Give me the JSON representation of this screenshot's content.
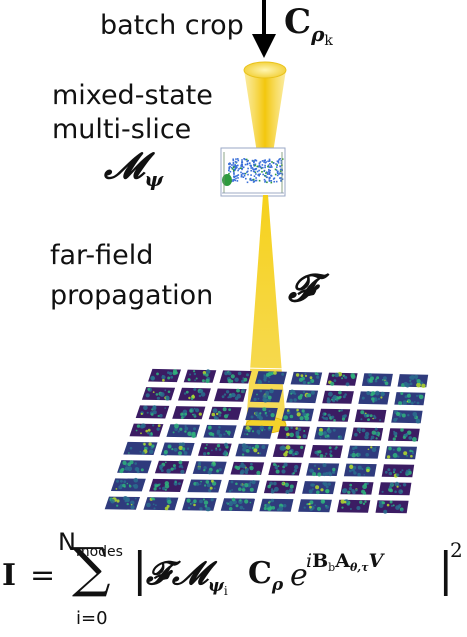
{
  "labels": {
    "batch_crop": "batch crop",
    "crop_symbol_main": "C",
    "crop_symbol_sub": "ρ",
    "crop_symbol_subsub": "k",
    "mixed_state_line1": "mixed-state",
    "mixed_state_line2": "multi-slice",
    "mixed_state_symbol": "𝓜",
    "mixed_state_symbol_sub": "ψ",
    "far_field_line1": "far-field",
    "far_field_line2": "propagation",
    "propagation_symbol": "𝓕"
  },
  "formula": {
    "lhs": "I",
    "equals": "=",
    "sum_symbol": "∑",
    "upper_limit": "N",
    "upper_limit_sub": "modes",
    "lower_limit": "i=0",
    "bar": "|",
    "F": "𝓕",
    "M": "𝓜",
    "M_sub": "ψ",
    "M_subsub": "i",
    "C": "C",
    "C_sub": "ρ",
    "e": "e",
    "exp_i": "i",
    "exp_B": "B",
    "exp_B_sub": "b",
    "exp_A": "A",
    "exp_A_sub": "θ,τ",
    "exp_V": "V",
    "power": "2"
  },
  "detector": {
    "rows": 8,
    "cols": 8,
    "colormap": "viridis"
  },
  "colors": {
    "beam_top": "#f2d12a",
    "beam_light": "#fbe98a",
    "beam_core": "#e8b400",
    "sample_blue": "#3a6fd8",
    "sample_green": "#2e9b3e",
    "pattern_bg": "#3b1c63",
    "pattern_mid": "#2a6f8e",
    "pattern_hot": "#2fb47c",
    "arrow": "#000000"
  }
}
